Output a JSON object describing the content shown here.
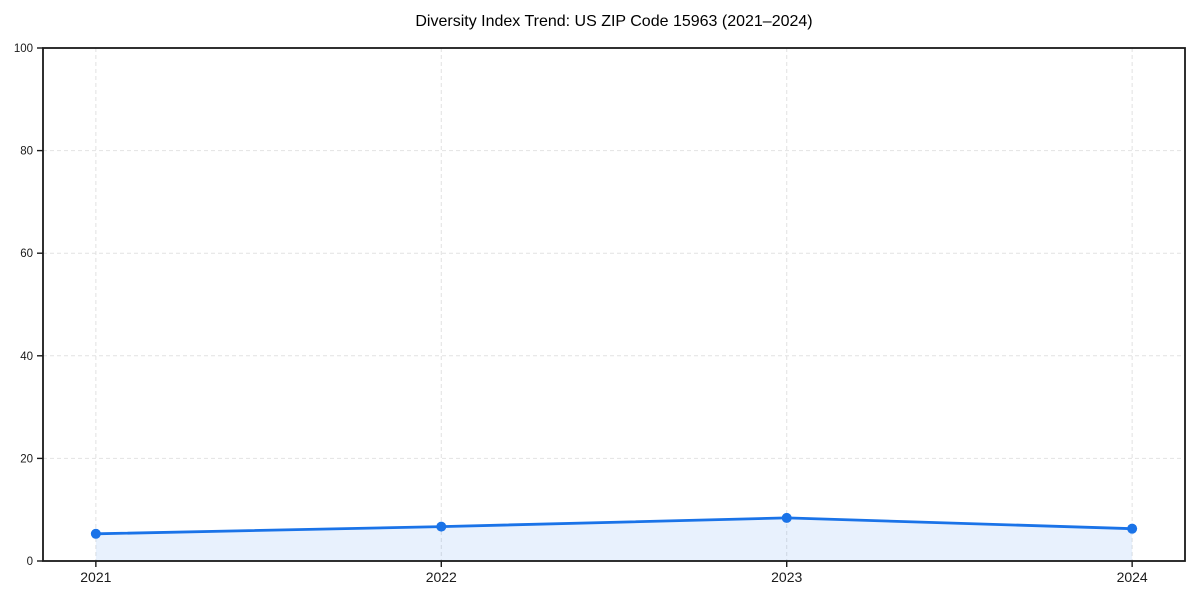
{
  "page": {
    "background": "#ffffff"
  },
  "chart_data": {
    "type": "line",
    "title": "Diversity Index Trend: US ZIP Code 15963 (2021–2024)",
    "x": [
      2021,
      2022,
      2023,
      2024
    ],
    "series": [
      {
        "name": "Diversity Index",
        "values": [
          5.3,
          6.7,
          8.4,
          6.3
        ]
      }
    ],
    "xlabel": "",
    "ylabel": "",
    "ylim": [
      0,
      100
    ],
    "xlim": [
      2020.847,
      2024.153
    ],
    "yticks": [
      0,
      20,
      40,
      60,
      80,
      100
    ],
    "xticks": [
      2021,
      2022,
      2023,
      2024
    ],
    "grid": true,
    "grid_style": "dashed",
    "legend": false,
    "area_fill": true,
    "markers": true,
    "colors": {
      "line": "#1a73e8",
      "marker": "#1a73e8",
      "fill": "rgba(26,115,232,0.10)",
      "grid": "#e2e2e2",
      "spine": "#1a1a1a",
      "tick_label": "#1a1a1a",
      "title": "#000000"
    }
  }
}
